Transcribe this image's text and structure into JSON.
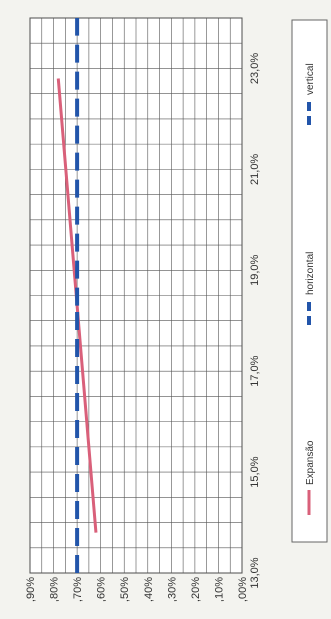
{
  "chart_data": {
    "type": "line",
    "x_axis": {
      "ticks": [
        13,
        15,
        17,
        19,
        21,
        23
      ],
      "tick_labels": [
        "13,0%",
        "15,0%",
        "17,0%",
        "19,0%",
        "21,0%",
        "23,0%"
      ],
      "range": [
        13,
        24
      ]
    },
    "y_axis": {
      "ticks": [
        0.0,
        0.1,
        0.2,
        0.3,
        0.4,
        0.5,
        0.6,
        0.7,
        0.8,
        0.9
      ],
      "tick_labels": [
        ",00%",
        ",10%",
        ",20%",
        ",30%",
        ",40%",
        ",50%",
        ",60%",
        ",70%",
        ",80%",
        ",90%"
      ],
      "range": [
        0.0,
        0.9
      ]
    },
    "grid": true,
    "legend_position": "right",
    "series": [
      {
        "name": "Expansão",
        "color": "#d9607a",
        "style": "solid",
        "x": [
          13.8,
          22.8
        ],
        "y": [
          0.62,
          0.78
        ]
      },
      {
        "name": "horizontal",
        "color": "#2255aa",
        "style": "dashed",
        "x": [
          13.0,
          18.3
        ],
        "y": [
          0.7,
          0.7
        ]
      },
      {
        "name": "vertical",
        "color": "#2255aa",
        "style": "dashed",
        "x": [
          18.3,
          24.0
        ],
        "y": [
          0.7,
          0.7
        ]
      }
    ]
  }
}
